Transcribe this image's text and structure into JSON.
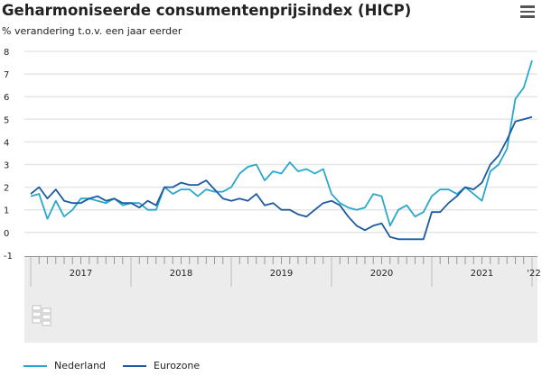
{
  "header": {
    "title": "Geharmoniseerde consumentenprijsindex (HICP)",
    "subtitle": "% verandering t.o.v. een jaar eerder",
    "menu_icon": "hamburger-menu-icon"
  },
  "logo": "cbs",
  "chart_data": {
    "type": "line",
    "title": "Geharmoniseerde consumentenprijsindex (HICP)",
    "ylabel": "% verandering t.o.v. een jaar eerder",
    "ylim": [
      -1,
      8
    ],
    "yticks": [
      "-1",
      "0",
      "1",
      "2",
      "3",
      "4",
      "5",
      "6",
      "7",
      "8"
    ],
    "x_range": [
      "2017-01",
      "2022-01"
    ],
    "xticks": [
      "2017",
      "2018",
      "2019",
      "2020",
      "2021",
      "'22"
    ],
    "grid": true,
    "legend": "bottom-left",
    "series": [
      {
        "name": "Nederland",
        "color": "#29a7cc",
        "values": [
          1.6,
          1.7,
          0.6,
          1.4,
          0.7,
          1.0,
          1.5,
          1.5,
          1.4,
          1.3,
          1.5,
          1.2,
          1.3,
          1.3,
          1.0,
          1.0,
          2.0,
          1.7,
          1.9,
          1.9,
          1.6,
          1.9,
          1.8,
          1.8,
          2.0,
          2.6,
          2.9,
          3.0,
          2.3,
          2.7,
          2.6,
          3.1,
          2.7,
          2.8,
          2.6,
          2.8,
          1.7,
          1.3,
          1.1,
          1.0,
          1.1,
          1.7,
          1.6,
          0.3,
          1.0,
          1.2,
          0.7,
          0.9,
          1.6,
          1.9,
          1.9,
          1.7,
          2.0,
          1.7,
          1.4,
          2.7,
          3.0,
          3.7,
          5.9,
          6.4,
          7.6
        ]
      },
      {
        "name": "Eurozone",
        "color": "#1e5aa0",
        "values": [
          1.7,
          2.0,
          1.5,
          1.9,
          1.4,
          1.3,
          1.3,
          1.5,
          1.6,
          1.4,
          1.5,
          1.3,
          1.3,
          1.1,
          1.4,
          1.2,
          2.0,
          2.0,
          2.2,
          2.1,
          2.1,
          2.3,
          1.9,
          1.5,
          1.4,
          1.5,
          1.4,
          1.7,
          1.2,
          1.3,
          1.0,
          1.0,
          0.8,
          0.7,
          1.0,
          1.3,
          1.4,
          1.2,
          0.7,
          0.3,
          0.1,
          0.3,
          0.4,
          -0.2,
          -0.3,
          -0.3,
          -0.3,
          -0.3,
          0.9,
          0.9,
          1.3,
          1.6,
          2.0,
          1.9,
          2.2,
          3.0,
          3.4,
          4.1,
          4.9,
          5.0,
          5.1
        ]
      }
    ]
  }
}
